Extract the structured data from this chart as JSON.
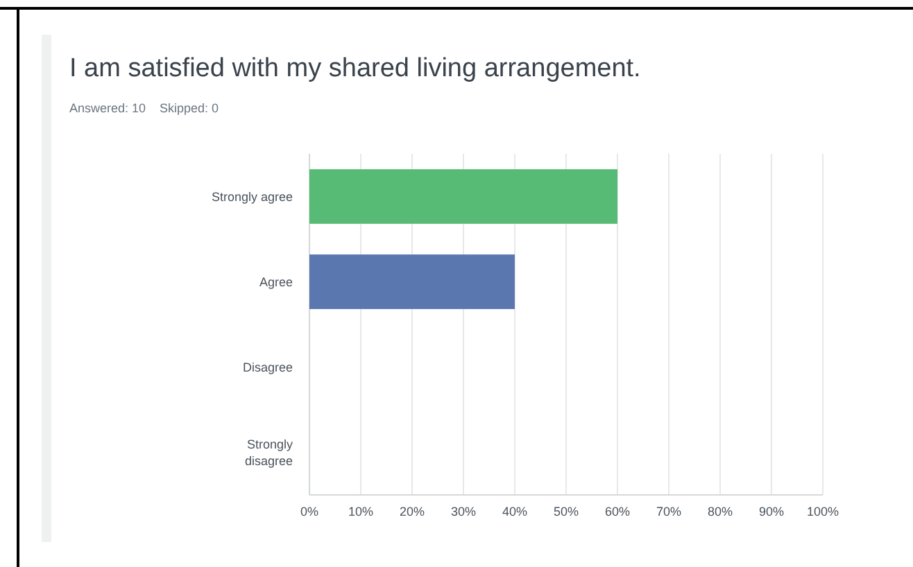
{
  "chart_data": {
    "type": "bar",
    "orientation": "horizontal",
    "title": "I am satisfied with my shared living arrangement.",
    "subtitle": "Answered: 10    Skipped: 0",
    "categories": [
      "Strongly agree",
      "Agree",
      "Disagree",
      "Strongly disagree"
    ],
    "values": [
      60,
      40,
      0,
      0
    ],
    "colors": [
      "#57bb75",
      "#5b77b0",
      "#e8a04c",
      "#d9534f"
    ],
    "xlim": [
      0,
      100
    ],
    "xticks": [
      {
        "value": 0,
        "label": "0%"
      },
      {
        "value": 10,
        "label": "10%"
      },
      {
        "value": 20,
        "label": "20%"
      },
      {
        "value": 30,
        "label": "30%"
      },
      {
        "value": 40,
        "label": "40%"
      },
      {
        "value": 50,
        "label": "50%"
      },
      {
        "value": 60,
        "label": "60%"
      },
      {
        "value": 70,
        "label": "70%"
      },
      {
        "value": 80,
        "label": "80%"
      },
      {
        "value": 90,
        "label": "90%"
      },
      {
        "value": 100,
        "label": "100%"
      }
    ],
    "grid": "x"
  }
}
